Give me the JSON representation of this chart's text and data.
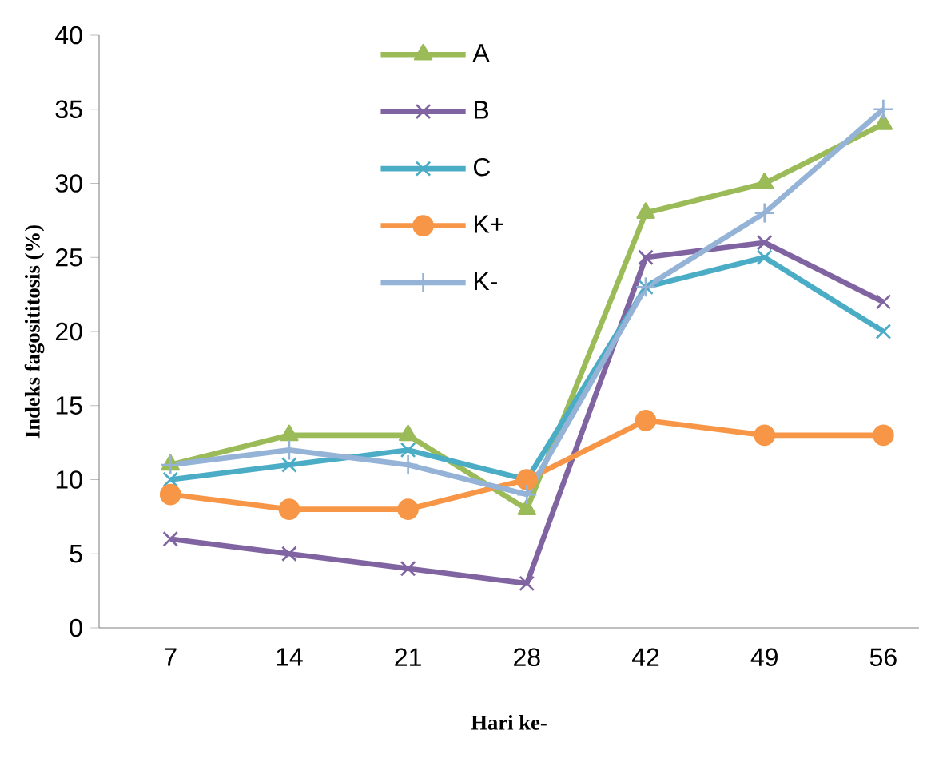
{
  "chart_data": {
    "type": "line",
    "xlabel": "Hari ke-",
    "ylabel": "Indeks fagosititosis (%)",
    "categories": [
      "7",
      "14",
      "21",
      "28",
      "42",
      "49",
      "56"
    ],
    "ylim": [
      0,
      40
    ],
    "yticks": [
      0,
      5,
      10,
      15,
      20,
      25,
      30,
      35,
      40
    ],
    "grid": false,
    "legend": "top",
    "series": [
      {
        "name": "A",
        "color": "#9bbb59",
        "marker": "triangle",
        "values": [
          11,
          13,
          13,
          8,
          28,
          30,
          34
        ]
      },
      {
        "name": "B",
        "color": "#8064a2",
        "marker": "cross",
        "values": [
          6,
          5,
          4,
          3,
          25,
          26,
          22
        ]
      },
      {
        "name": "C",
        "color": "#4bacc6",
        "marker": "cross",
        "values": [
          10,
          11,
          12,
          10,
          23,
          25,
          20
        ]
      },
      {
        "name": "K+",
        "color": "#f79646",
        "marker": "circle",
        "values": [
          9,
          8,
          8,
          10,
          14,
          13,
          13
        ]
      },
      {
        "name": "K-",
        "color": "#95b3d7",
        "marker": "plus",
        "values": [
          11,
          12,
          11,
          9,
          23,
          28,
          35
        ]
      }
    ]
  }
}
